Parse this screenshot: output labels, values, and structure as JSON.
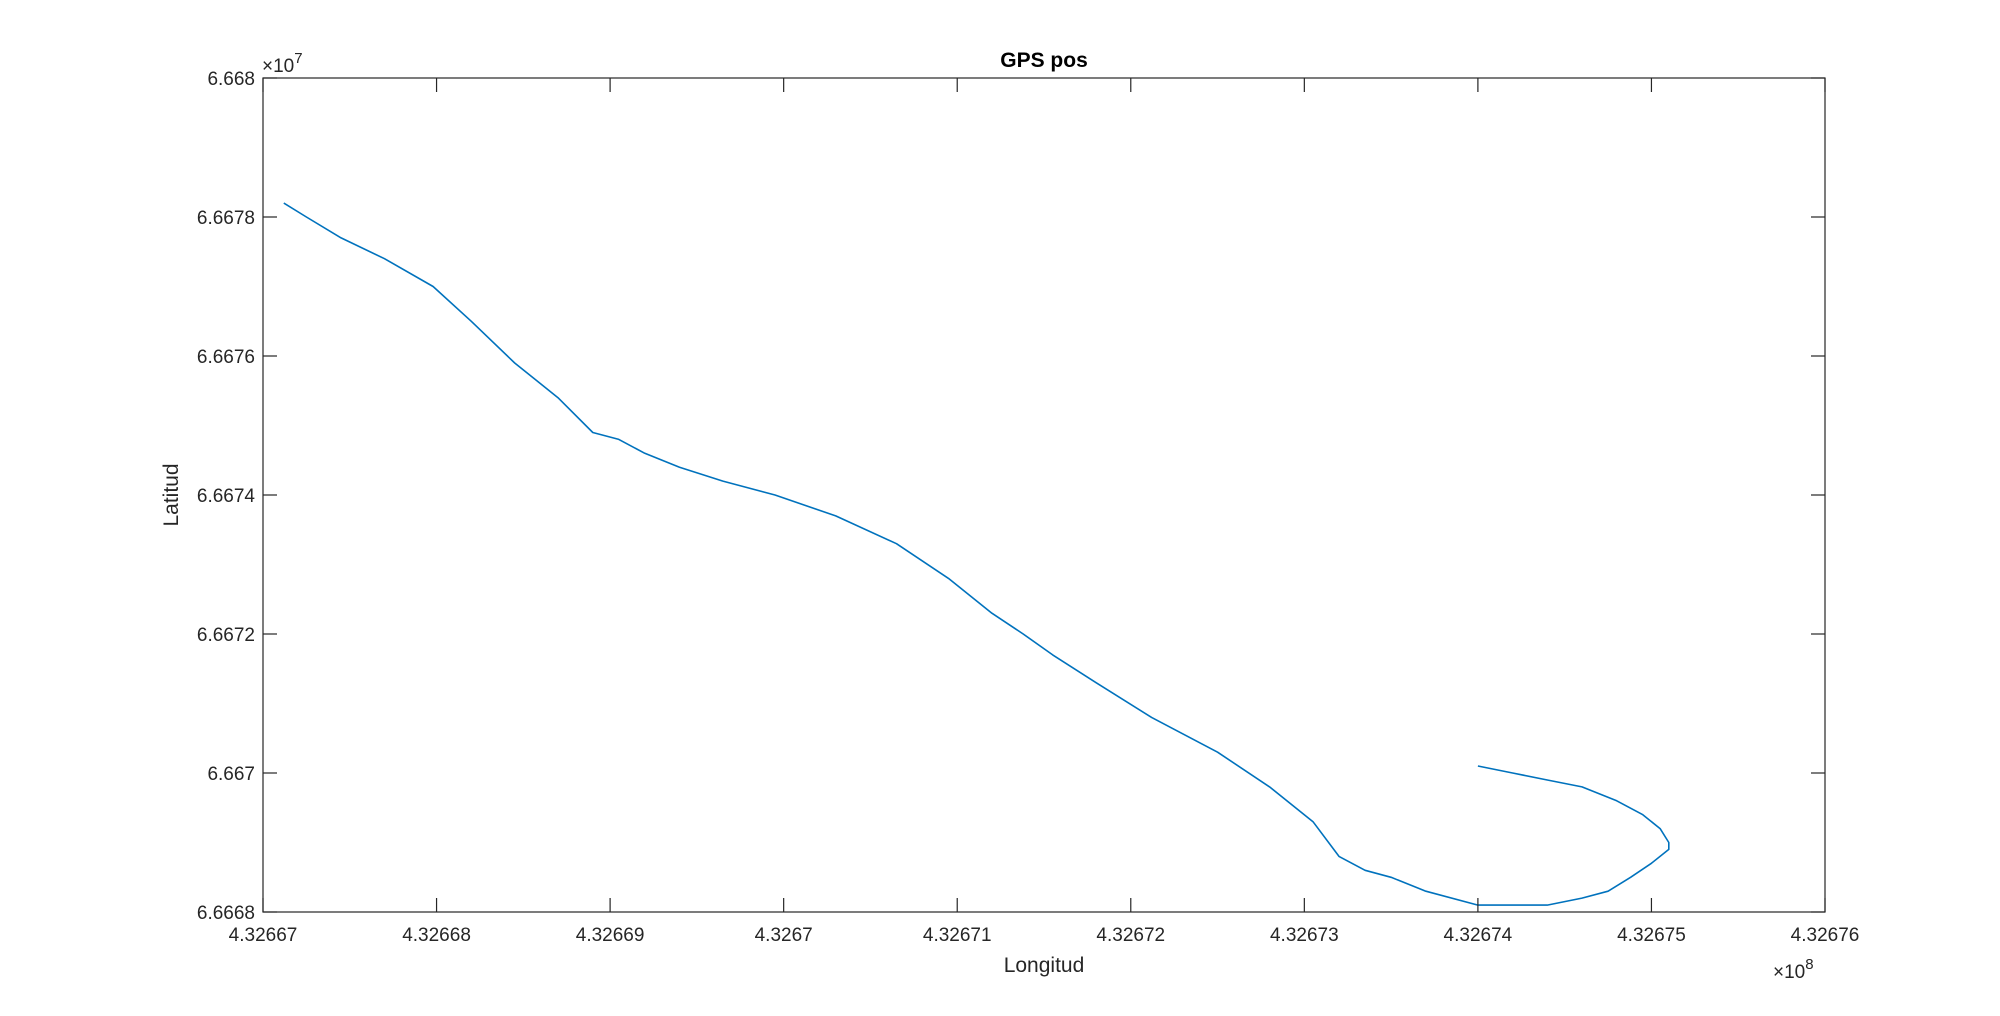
{
  "chart_data": {
    "type": "line",
    "title": "GPS pos",
    "xlabel": "Longitud",
    "ylabel": "Latitud",
    "xlim": [
      4.32667,
      4.32676
    ],
    "ylim": [
      6.6668,
      6.668
    ],
    "x_exponent": {
      "base": "×10",
      "power": "8"
    },
    "y_exponent": {
      "base": "×10",
      "power": "7"
    },
    "x_ticks": [
      4.32667,
      4.32668,
      4.32669,
      4.3267,
      4.32671,
      4.32672,
      4.32673,
      4.32674,
      4.32675,
      4.32676
    ],
    "x_tick_labels": [
      "4.32667",
      "4.32668",
      "4.32669",
      "4.3267",
      "4.32671",
      "4.32672",
      "4.32673",
      "4.32674",
      "4.32675",
      "4.32676"
    ],
    "y_ticks": [
      6.6668,
      6.667,
      6.6672,
      6.6674,
      6.6676,
      6.6678,
      6.668
    ],
    "y_tick_labels": [
      "6.6668",
      "6.667",
      "6.6672",
      "6.6674",
      "6.6676",
      "6.6678",
      "6.668"
    ],
    "grid": false,
    "box": true,
    "series": [
      {
        "color": "#0072BD",
        "x": [
          4.3266712,
          4.3266725,
          4.3266745,
          4.326677,
          4.3266798,
          4.326682,
          4.3266845,
          4.326687,
          4.326689,
          4.3266905,
          4.326692,
          4.326694,
          4.3266965,
          4.3266995,
          4.326703,
          4.3267065,
          4.3267095,
          4.326712,
          4.3267138,
          4.3267155,
          4.326718,
          4.3267212,
          4.326725,
          4.326728,
          4.3267305,
          4.326732,
          4.3267335,
          4.326735,
          4.326737,
          4.32674,
          4.326742,
          4.326744,
          4.326746,
          4.3267475,
          4.3267488,
          4.32675,
          4.326751,
          4.326751,
          4.3267505,
          4.3267495,
          4.326748,
          4.326746,
          4.326744,
          4.326742,
          4.32674
        ],
        "y": [
          6.66782,
          6.6678,
          6.66777,
          6.66774,
          6.6677,
          6.66765,
          6.66759,
          6.66754,
          6.66749,
          6.66748,
          6.66746,
          6.66744,
          6.66742,
          6.6674,
          6.66737,
          6.66733,
          6.66728,
          6.66723,
          6.6672,
          6.66717,
          6.66713,
          6.66708,
          6.66703,
          6.66698,
          6.66693,
          6.66688,
          6.66686,
          6.66685,
          6.66683,
          6.66681,
          6.66681,
          6.66681,
          6.66682,
          6.66683,
          6.66685,
          6.66687,
          6.66689,
          6.6669,
          6.66692,
          6.66694,
          6.66696,
          6.66698,
          6.66699,
          6.667,
          6.66701
        ]
      }
    ]
  }
}
